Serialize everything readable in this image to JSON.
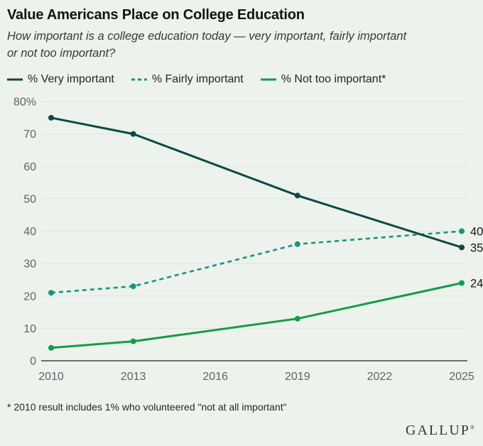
{
  "page": {
    "title": "Value Americans Place on College Education",
    "subtitle": "How important is a college education today — very important, fairly important or not too important?",
    "footnote": "* 2010 result includes 1% who volunteered \"not at all important\"",
    "brand": "GALLUP",
    "brand_mark": "®"
  },
  "colors": {
    "background": "#edf2ec",
    "grid": "#dee5de",
    "axis": "#3d4542",
    "tick_text": "#5d6466",
    "title_text": "#10150f",
    "subtitle_text": "#333b38",
    "footnote_text": "#22282a",
    "end_label_text": "#15181b",
    "brand_text": "#2f3a36",
    "very_important": "#0c4a41",
    "fairly_important": "#17947f",
    "not_too_important": "#149c4a"
  },
  "chart_data": {
    "type": "line",
    "title": "Value Americans Place on College Education",
    "x": [
      2010,
      2013,
      2019,
      2025
    ],
    "x_ticks": [
      2010,
      2013,
      2016,
      2019,
      2022,
      2025
    ],
    "xlim": [
      2010,
      2025
    ],
    "ylim": [
      0,
      80
    ],
    "y_ticks": [
      0,
      10,
      20,
      30,
      40,
      50,
      60,
      70,
      80
    ],
    "y_tick_labels": [
      "0",
      "10",
      "20",
      "30",
      "40",
      "50",
      "60",
      "70",
      "80%"
    ],
    "grid": "horizontal",
    "legend_position": "top",
    "series": [
      {
        "key": "very-important",
        "name": "% Very important",
        "values": [
          75,
          70,
          51,
          35
        ],
        "color": "#0c4a41",
        "dashed": false,
        "end_label": "35",
        "z": 3
      },
      {
        "key": "fairly-important",
        "name": "% Fairly important",
        "values": [
          21,
          23,
          36,
          40
        ],
        "color": "#17947f",
        "dashed": true,
        "end_label": "40",
        "z": 1
      },
      {
        "key": "not-too-important",
        "name": "% Not too important*",
        "values": [
          4,
          6,
          13,
          24
        ],
        "color": "#149c4a",
        "dashed": false,
        "end_label": "24",
        "z": 2
      }
    ]
  }
}
